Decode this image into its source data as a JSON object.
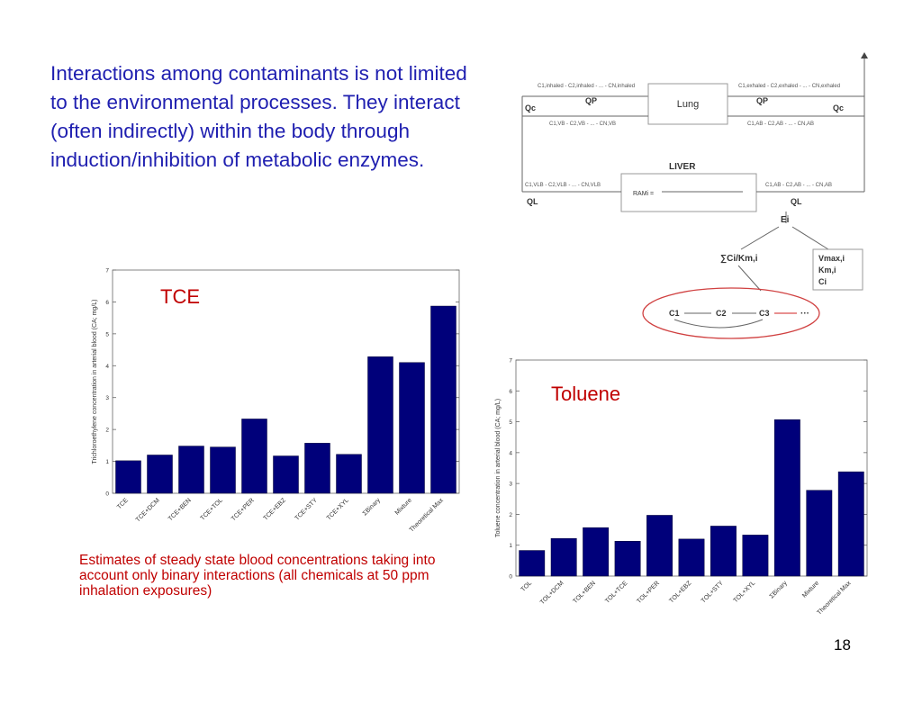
{
  "intro_text": "Interactions among contaminants is not limited to the environmental processes. They interact (often indirectly) within the body through induction/inhibition of metabolic enzymes.",
  "caption": "Estimates of steady state blood concentrations taking into account only binary interactions (all chemicals at 50 ppm inhalation exposures)",
  "slide_number": "18",
  "colors": {
    "bar": "#00007a",
    "title_red": "#c00000",
    "intro_blue": "#1f1fb0"
  },
  "diagram": {
    "lung_label": "Lung",
    "liver_label": "LIVER",
    "qp": "QP",
    "qc": "Qc",
    "ql": "QL",
    "ei": "Ei",
    "inhaled": "C1,inhaled - C2,inhaled - ... - CN,inhaled",
    "exhaled": "C1,exhaled - C2,exhaled - ... - CN,exhaled",
    "venous_b": "C1,VB - C2,VB - ... - CN,VB",
    "arterial_b": "C1,AB - C2,AB - ... - CN,AB",
    "venous_l": "C1,VLB - C2,VLB - ... - CN,VLB",
    "arterial_l": "C1,AB - C2,AB - ... - CN,AB",
    "ram_label": "RAMi =",
    "sum_ck": "∑Ci/Km,i",
    "vmax": "Vmax,i",
    "km": "Km,i",
    "ci": "Ci",
    "c1": "C1",
    "c2": "C2",
    "c3": "C3",
    "dots": "···"
  },
  "chart_data": [
    {
      "type": "bar",
      "title": "TCE",
      "ylabel": "Trichloroethylene concentration in arterial blood (CA; mg/L)",
      "xlabel": "",
      "ylim": [
        0,
        7
      ],
      "yticks": [
        0,
        1,
        2,
        3,
        4,
        5,
        6,
        7
      ],
      "categories": [
        "TCE",
        "TCE+DCM",
        "TCE+BEN",
        "TCE+TOL",
        "TCE+PER",
        "TCE+EBZ",
        "TCE+STY",
        "TCE+XYL",
        "ΣBinary",
        "Mixture",
        "Theoretical Max"
      ],
      "values": [
        1.02,
        1.2,
        1.48,
        1.45,
        2.33,
        1.17,
        1.57,
        1.22,
        4.28,
        4.1,
        5.87
      ],
      "grid": false,
      "legend": "none"
    },
    {
      "type": "bar",
      "title": "Toluene",
      "ylabel": "Toluene concentration in arterial blood (CA; mg/L)",
      "xlabel": "",
      "ylim": [
        0,
        7
      ],
      "yticks": [
        0,
        1,
        2,
        3,
        4,
        5,
        6,
        7
      ],
      "categories": [
        "TOL",
        "TOL+DCM",
        "TOL+BEN",
        "TOL+TCE",
        "TOL+PER",
        "TOL+EBZ",
        "TOL+STY",
        "TOL+XYL",
        "ΣBinary",
        "Mixture",
        "Theoretical Max"
      ],
      "values": [
        0.83,
        1.22,
        1.57,
        1.13,
        1.97,
        1.2,
        1.62,
        1.33,
        5.07,
        2.78,
        3.38
      ],
      "grid": false,
      "legend": "none"
    }
  ]
}
